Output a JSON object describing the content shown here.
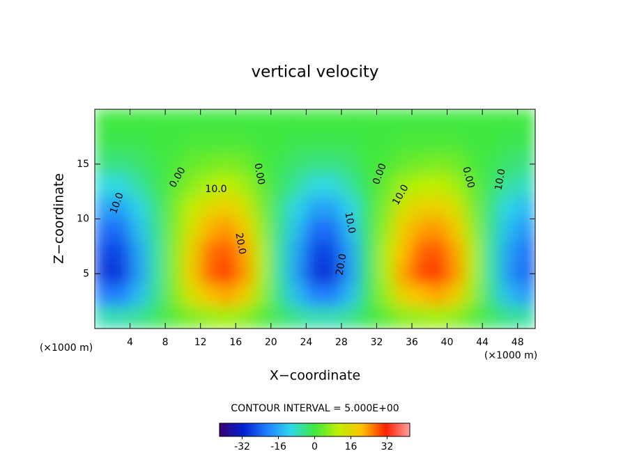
{
  "chart_data": {
    "type": "contour",
    "title": "vertical velocity",
    "xlabel": "X−coordinate",
    "ylabel": "Z−coordinate",
    "unit_labels": [
      "(×1000 m)",
      "(×1000 m)"
    ],
    "contour_interval_label": "CONTOUR INTERVAL = 5.000E+00",
    "xlim": [
      0,
      50
    ],
    "ylim": [
      0,
      20
    ],
    "xticks": [
      4,
      8,
      12,
      16,
      20,
      24,
      28,
      32,
      36,
      40,
      44,
      48
    ],
    "yticks": [
      5,
      10,
      15
    ],
    "x": [
      1,
      3,
      5,
      7,
      9,
      11,
      13,
      15,
      17,
      19,
      21,
      23,
      25,
      27,
      29,
      31,
      33,
      35,
      37,
      39,
      41,
      43,
      45,
      47,
      49
    ],
    "y": [
      19,
      17,
      15,
      13,
      11,
      9,
      7,
      5,
      3,
      1
    ],
    "values": [
      [
        0,
        0,
        0,
        0,
        0,
        0,
        0,
        0,
        0,
        0,
        0,
        0,
        0,
        0,
        0,
        0,
        0,
        0,
        0,
        0,
        0,
        0,
        0,
        0,
        0
      ],
      [
        -1,
        -1,
        -1,
        0,
        0,
        1,
        1,
        1,
        1,
        0,
        0,
        -1,
        -1,
        -1,
        -1,
        0,
        0,
        1,
        1,
        1,
        1,
        0,
        0,
        -1,
        -1
      ],
      [
        -4,
        -4,
        -3,
        -1,
        1,
        3,
        4,
        5,
        4,
        1,
        -1,
        -3,
        -4,
        -4,
        -3,
        0,
        1,
        3,
        4,
        5,
        4,
        1,
        -1,
        -3,
        -4
      ],
      [
        -10,
        -10,
        -6,
        -2,
        2,
        6,
        9,
        11,
        8,
        3,
        -2,
        -6,
        -10,
        -10,
        -6,
        -1,
        3,
        8,
        10,
        11,
        8,
        3,
        -2,
        -6,
        -8
      ],
      [
        -17,
        -17,
        -11,
        -4,
        4,
        11,
        16,
        18,
        14,
        5,
        -4,
        -11,
        -17,
        -17,
        -11,
        -2,
        5,
        14,
        17,
        18,
        14,
        5,
        -4,
        -11,
        -14
      ],
      [
        -23,
        -23,
        -14,
        -5,
        5,
        14,
        22,
        24,
        19,
        7,
        -5,
        -14,
        -23,
        -23,
        -14,
        -2,
        7,
        18,
        23,
        24,
        19,
        7,
        -5,
        -14,
        -19
      ],
      [
        -27,
        -27,
        -17,
        -6,
        6,
        17,
        26,
        28,
        23,
        9,
        -6,
        -17,
        -27,
        -27,
        -17,
        -3,
        9,
        21,
        27,
        28,
        23,
        9,
        -6,
        -17,
        -23
      ],
      [
        -29,
        -29,
        -18,
        -6,
        6,
        18,
        27,
        30,
        24,
        9,
        -6,
        -18,
        -29,
        -29,
        -18,
        -3,
        9,
        23,
        29,
        30,
        24,
        9,
        -6,
        -18,
        -24
      ],
      [
        -21,
        -21,
        -14,
        -5,
        5,
        14,
        20,
        23,
        18,
        7,
        -5,
        -14,
        -21,
        -21,
        -14,
        -2,
        7,
        17,
        21,
        23,
        18,
        7,
        -5,
        -14,
        -18
      ],
      [
        -7,
        -7,
        -5,
        -2,
        2,
        5,
        7,
        8,
        6,
        2,
        -2,
        -5,
        -7,
        -7,
        -5,
        -1,
        2,
        6,
        7,
        8,
        6,
        2,
        -2,
        -5,
        -6
      ]
    ],
    "contour_labels": [
      {
        "value": 0,
        "label": "0.00"
      },
      {
        "value": 10,
        "label": "10.0"
      },
      {
        "value": 20,
        "label": "20.0"
      },
      {
        "value": 0,
        "label": "0.00"
      },
      {
        "value": -10,
        "label": "10.0"
      },
      {
        "value": -10,
        "label": "10.0"
      },
      {
        "value": -20,
        "label": "20.0"
      },
      {
        "value": 0,
        "label": "0.00"
      },
      {
        "value": 10,
        "label": "10.0"
      },
      {
        "value": 0,
        "label": "0.00"
      },
      {
        "value": -10,
        "label": "10.0"
      }
    ],
    "colormap": [
      "#3a0070",
      "#0020d0",
      "#2080ff",
      "#30d8e8",
      "#40e840",
      "#c0f000",
      "#ffc000",
      "#ff2000",
      "#ffa0a0"
    ],
    "clim": [
      -42,
      42
    ],
    "cticks": [
      -32,
      -16,
      0,
      16,
      32
    ]
  }
}
